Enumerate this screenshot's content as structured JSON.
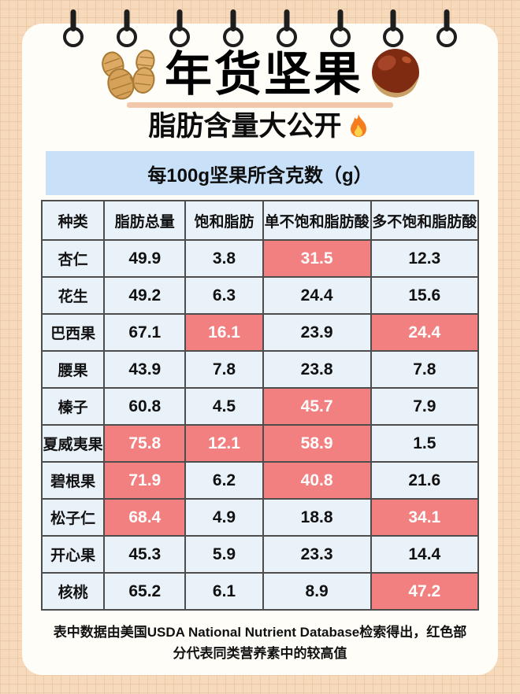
{
  "page": {
    "title": "年货坚果",
    "subtitle": "脂肪含量大公开",
    "banner": "每100g坚果所含克数（g）",
    "footnote": "表中数据由美国USDA National Nutrient Database检索得出，红色部分代表同类营养素中的较高值"
  },
  "binder": {
    "ring_count": 8
  },
  "icons": {
    "title_left": "peanut-icon",
    "title_right": "chestnut-icon",
    "subtitle_end": "fire-icon"
  },
  "colors": {
    "page_background": "#F7D9BC",
    "grid_line": "#ECC9A7",
    "card": "#FFFDF8",
    "banner_bg": "#C9E1F8",
    "cell_bg": "#E9F1F9",
    "highlight_bg": "#F28080",
    "highlight_text": "#FFFFFF",
    "border": "#4D4D4D",
    "title_underline": "#F2C7AA",
    "text": "#111111"
  },
  "table": {
    "columns": [
      "种类",
      "脂肪总量",
      "饱和脂肪",
      "单不饱和脂肪酸",
      "多不饱和脂肪酸"
    ],
    "rows": [
      {
        "type": "杏仁",
        "values": [
          "49.9",
          "3.8",
          "31.5",
          "12.3"
        ],
        "highlight": [
          2
        ]
      },
      {
        "type": "花生",
        "values": [
          "49.2",
          "6.3",
          "24.4",
          "15.6"
        ],
        "highlight": []
      },
      {
        "type": "巴西果",
        "values": [
          "67.1",
          "16.1",
          "23.9",
          "24.4"
        ],
        "highlight": [
          1,
          3
        ]
      },
      {
        "type": "腰果",
        "values": [
          "43.9",
          "7.8",
          "23.8",
          "7.8"
        ],
        "highlight": []
      },
      {
        "type": "榛子",
        "values": [
          "60.8",
          "4.5",
          "45.7",
          "7.9"
        ],
        "highlight": [
          2
        ]
      },
      {
        "type": "夏威夷果",
        "values": [
          "75.8",
          "12.1",
          "58.9",
          "1.5"
        ],
        "highlight": [
          0,
          1,
          2
        ]
      },
      {
        "type": "碧根果",
        "values": [
          "71.9",
          "6.2",
          "40.8",
          "21.6"
        ],
        "highlight": [
          0,
          2
        ]
      },
      {
        "type": "松子仁",
        "values": [
          "68.4",
          "4.9",
          "18.8",
          "34.1"
        ],
        "highlight": [
          0,
          3
        ]
      },
      {
        "type": "开心果",
        "values": [
          "45.3",
          "5.9",
          "23.3",
          "14.4"
        ],
        "highlight": []
      },
      {
        "type": "核桃",
        "values": [
          "65.2",
          "6.1",
          "8.9",
          "47.2"
        ],
        "highlight": [
          3
        ]
      }
    ]
  },
  "chart_data": {
    "type": "table",
    "title": "每100g坚果所含克数（g）",
    "columns": [
      "种类",
      "脂肪总量",
      "饱和脂肪",
      "单不饱和脂肪酸",
      "多不饱和脂肪酸"
    ],
    "rows": [
      [
        "杏仁",
        49.9,
        3.8,
        31.5,
        12.3
      ],
      [
        "花生",
        49.2,
        6.3,
        24.4,
        15.6
      ],
      [
        "巴西果",
        67.1,
        16.1,
        23.9,
        24.4
      ],
      [
        "腰果",
        43.9,
        7.8,
        23.8,
        7.8
      ],
      [
        "榛子",
        60.8,
        4.5,
        45.7,
        7.9
      ],
      [
        "夏威夷果",
        75.8,
        12.1,
        58.9,
        1.5
      ],
      [
        "碧根果",
        71.9,
        6.2,
        40.8,
        21.6
      ],
      [
        "松子仁",
        68.4,
        4.9,
        18.8,
        34.1
      ],
      [
        "开心果",
        45.3,
        5.9,
        23.3,
        14.4
      ],
      [
        "核桃",
        65.2,
        6.1,
        8.9,
        47.2
      ]
    ],
    "highlighted_cells_note": "红色部分代表同类营养素中的较高值",
    "highlighted_cells": [
      [
        "杏仁",
        "单不饱和脂肪酸"
      ],
      [
        "巴西果",
        "饱和脂肪"
      ],
      [
        "巴西果",
        "多不饱和脂肪酸"
      ],
      [
        "榛子",
        "单不饱和脂肪酸"
      ],
      [
        "夏威夷果",
        "脂肪总量"
      ],
      [
        "夏威夷果",
        "饱和脂肪"
      ],
      [
        "夏威夷果",
        "单不饱和脂肪酸"
      ],
      [
        "碧根果",
        "脂肪总量"
      ],
      [
        "碧根果",
        "单不饱和脂肪酸"
      ],
      [
        "松子仁",
        "脂肪总量"
      ],
      [
        "松子仁",
        "多不饱和脂肪酸"
      ],
      [
        "核桃",
        "多不饱和脂肪酸"
      ]
    ]
  }
}
